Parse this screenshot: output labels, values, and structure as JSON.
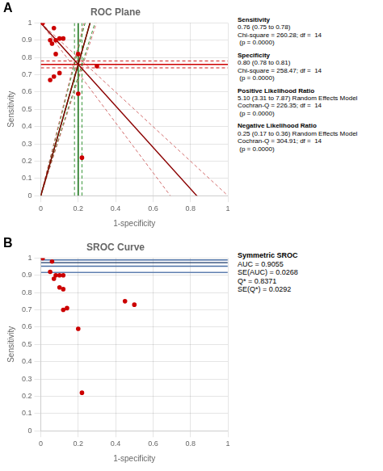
{
  "chart_data": [
    {
      "type": "scatter",
      "panel_label": "A",
      "title": "ROC Plane",
      "x_label": "1-specificity",
      "y_label": "Sensitivity",
      "xlim": [
        0,
        1
      ],
      "ylim": [
        0,
        1
      ],
      "xticks": [
        0,
        0.2,
        0.4,
        0.6,
        0.8,
        1
      ],
      "yticks": [
        0,
        0.1,
        0.2,
        0.3,
        0.4,
        0.5,
        0.6,
        0.7,
        0.8,
        0.9,
        1
      ],
      "grid": true,
      "series": [
        {
          "type": "line",
          "color": "#8b0000",
          "line_style": "solid",
          "values": [
            [
              0,
              0
            ],
            [
              0.263158,
              1
            ]
          ]
        },
        {
          "type": "line",
          "color": "#cd5c5c",
          "line_style": "dashed",
          "values": [
            [
              0,
              0
            ],
            [
              0.230769,
              1
            ]
          ]
        },
        {
          "type": "line",
          "color": "#cd5c5c",
          "line_style": "dashed",
          "values": [
            [
              0,
              0
            ],
            [
              0.297297,
              1
            ]
          ]
        },
        {
          "type": "line",
          "color": "#8b0000",
          "line_style": "solid",
          "values": [
            [
              0,
              1
            ],
            [
              1,
              -0.2
            ]
          ]
        },
        {
          "type": "line",
          "color": "#cd5c5c",
          "line_style": "dashed",
          "values": [
            [
              0,
              1
            ],
            [
              1,
              -0.444444
            ]
          ]
        },
        {
          "type": "line",
          "color": "#cd5c5c",
          "line_style": "dashed",
          "values": [
            [
              0,
              1
            ],
            [
              1,
              0
            ]
          ]
        },
        {
          "type": "line",
          "color": "#006400",
          "line_style": "solid",
          "values": [
            [
              0,
              0
            ],
            [
              1,
              3.8
            ]
          ]
        },
        {
          "type": "line",
          "color": "#228b22",
          "line_style": "dashed",
          "values": [
            [
              0,
              0
            ],
            [
              0.9,
              3.8
            ]
          ]
        },
        {
          "type": "line",
          "color": "#228b22",
          "line_style": "dashed",
          "values": [
            [
              0,
              0
            ],
            [
              1,
              3.454545
            ]
          ]
        },
        {
          "type": "line",
          "color": "#cc0000",
          "line_style": "solid",
          "values": [
            [
              0,
              0.76
            ],
            [
              1,
              0.76
            ]
          ]
        },
        {
          "type": "line",
          "color": "#cc0000",
          "line_style": "dashed",
          "values": [
            [
              0,
              0.74
            ],
            [
              1,
              0.74
            ]
          ]
        },
        {
          "type": "line",
          "color": "#cc0000",
          "line_style": "dashed",
          "values": [
            [
              0,
              0.78
            ],
            [
              1,
              0.78
            ]
          ]
        },
        {
          "type": "line",
          "color": "#006400",
          "line_style": "solid",
          "values": [
            [
              0.2,
              0
            ],
            [
              0.2,
              1
            ]
          ]
        },
        {
          "type": "line",
          "color": "#228b22",
          "line_style": "dashed",
          "values": [
            [
              0.18,
              0
            ],
            [
              0.18,
              1
            ]
          ]
        },
        {
          "type": "line",
          "color": "#228b22",
          "line_style": "dashed",
          "values": [
            [
              0.22,
              0
            ],
            [
              0.22,
              1
            ]
          ]
        },
        {
          "type": "scatter",
          "color": "#cc0000",
          "marker": "circle",
          "values": [
            [
              0.01,
              1.0
            ],
            [
              0.07,
              0.97
            ],
            [
              0.05,
              0.9
            ],
            [
              0.08,
              0.9
            ],
            [
              0.1,
              0.91
            ],
            [
              0.12,
              0.91
            ],
            [
              0.06,
              0.88
            ],
            [
              0.08,
              0.82
            ],
            [
              0.1,
              0.71
            ],
            [
              0.07,
              0.69
            ],
            [
              0.05,
              0.67
            ],
            [
              0.2,
              0.82
            ],
            [
              0.2,
              0.59
            ],
            [
              0.3,
              0.75
            ],
            [
              0.22,
              0.22
            ]
          ]
        }
      ],
      "annotations": [
        [
          {
            "text": "Sensitivity",
            "weight": "bold"
          },
          {
            "text": "0.76 (0.75 to 0.78)",
            "weight": "normal"
          },
          {
            "text": "Chi-square = 260.28; df =  14",
            "weight": "normal"
          },
          {
            "text": " (p = 0.0000)",
            "weight": "normal"
          }
        ],
        [
          {
            "text": "Specificity",
            "weight": "bold"
          },
          {
            "text": "0.80 (0.78 to 0.81)",
            "weight": "normal"
          },
          {
            "text": "Chi-square = 258.47; df =  14",
            "weight": "normal"
          },
          {
            "text": " (p = 0.0000)",
            "weight": "normal"
          }
        ],
        [
          {
            "text": "Positive Likelihood Ratio",
            "weight": "bold"
          },
          {
            "text": "5.10 (3.31 to 7.87) Random Effects Model",
            "weight": "normal"
          },
          {
            "text": "Cochran-Q = 226.35; df =  14",
            "weight": "normal"
          },
          {
            "text": " (p = 0.0000)",
            "weight": "normal"
          }
        ],
        [
          {
            "text": "Negative Likelihood Ratio",
            "weight": "bold"
          },
          {
            "text": "0.25 (0.17 to 0.36) Random Effects Model",
            "weight": "normal"
          },
          {
            "text": "Cochran-Q = 304.91; df =  14",
            "weight": "normal"
          },
          {
            "text": " (p = 0.0000)",
            "weight": "normal"
          }
        ]
      ]
    },
    {
      "type": "scatter",
      "panel_label": "B",
      "title": "SROC Curve",
      "x_label": "1-specificity",
      "y_label": "Sensitivity",
      "xlim": [
        0,
        1
      ],
      "ylim": [
        0,
        1
      ],
      "xticks": [
        0,
        0.2,
        0.4,
        0.6,
        0.8,
        1
      ],
      "yticks": [
        0,
        0.1,
        0.2,
        0.3,
        0.4,
        0.5,
        0.6,
        0.7,
        0.8,
        0.9,
        1
      ],
      "grid": true,
      "series": [
        {
          "type": "line",
          "color": "#1a3a6b",
          "line_style": "solid",
          "values": [
            [
              0.001,
              0.973403
            ],
            [
              0.999,
              0.973403
            ]
          ]
        },
        {
          "type": "line",
          "color": "#4a6fa5",
          "line_style": "solid",
          "values": [
            [
              0.001,
              0.989013
            ],
            [
              0.999,
              0.989013
            ]
          ]
        },
        {
          "type": "line",
          "color": "#4a6fa5",
          "line_style": "solid",
          "values": [
            [
              0.001,
              0.952574
            ],
            [
              0.999,
              0.952574
            ]
          ]
        },
        {
          "type": "line",
          "color": "#6080b0",
          "line_style": "solid",
          "values": [
            [
              0.001,
              0.916827
            ],
            [
              0.999,
              0.916827
            ]
          ]
        },
        {
          "type": "scatter",
          "color": "#cc0000",
          "marker": "circle",
          "values": [
            [
              0.01,
              1.0
            ],
            [
              0.06,
              0.98
            ],
            [
              0.05,
              0.92
            ],
            [
              0.08,
              0.9
            ],
            [
              0.1,
              0.9
            ],
            [
              0.12,
              0.9
            ],
            [
              0.07,
              0.88
            ],
            [
              0.1,
              0.83
            ],
            [
              0.12,
              0.82
            ],
            [
              0.14,
              0.71
            ],
            [
              0.12,
              0.7
            ],
            [
              0.2,
              0.59
            ],
            [
              0.45,
              0.75
            ],
            [
              0.5,
              0.73
            ],
            [
              0.22,
              0.22
            ]
          ]
        }
      ],
      "annotations": [
        [
          {
            "text": "Symmetric SROC",
            "weight": "bold"
          },
          {
            "text": "AUC = 0.9055",
            "weight": "normal"
          },
          {
            "text": "SE(AUC) = 0.0268",
            "weight": "normal"
          },
          {
            "text": "Q* = 0.8371",
            "weight": "normal"
          },
          {
            "text": "SE(Q*) = 0.0292",
            "weight": "normal"
          }
        ]
      ]
    }
  ]
}
